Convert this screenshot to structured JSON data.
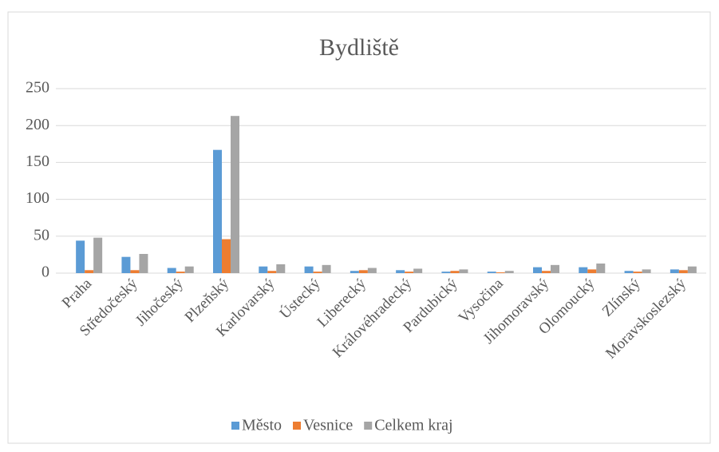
{
  "chart_data": {
    "type": "bar",
    "title": "Bydliště",
    "categories": [
      "Praha",
      "Středočeský",
      "Jihočeský",
      "Plzeňský",
      "Karlovarský",
      "Ústecký",
      "Liberecký",
      "Královéhradecký",
      "Pardubický",
      "Vysočina",
      "Jihomoravský",
      "Olomoucký",
      "Zlínský",
      "Moravskoslezský"
    ],
    "series": [
      {
        "name": "Město",
        "color": "#5b9bd5",
        "values": [
          44,
          22,
          7,
          167,
          9,
          9,
          3,
          4,
          2,
          2,
          8,
          8,
          3,
          5
        ]
      },
      {
        "name": "Vesnice",
        "color": "#ed7d31",
        "values": [
          4,
          4,
          2,
          46,
          3,
          2,
          4,
          2,
          3,
          1,
          3,
          5,
          2,
          4
        ]
      },
      {
        "name": "Celkem kraj",
        "color": "#a5a5a5",
        "values": [
          48,
          26,
          9,
          213,
          12,
          11,
          7,
          6,
          5,
          3,
          11,
          13,
          5,
          9
        ]
      }
    ],
    "ylim": [
      0,
      250
    ],
    "yticks": [
      0,
      50,
      100,
      150,
      200,
      250
    ],
    "grid": true,
    "legend": "bottom"
  }
}
